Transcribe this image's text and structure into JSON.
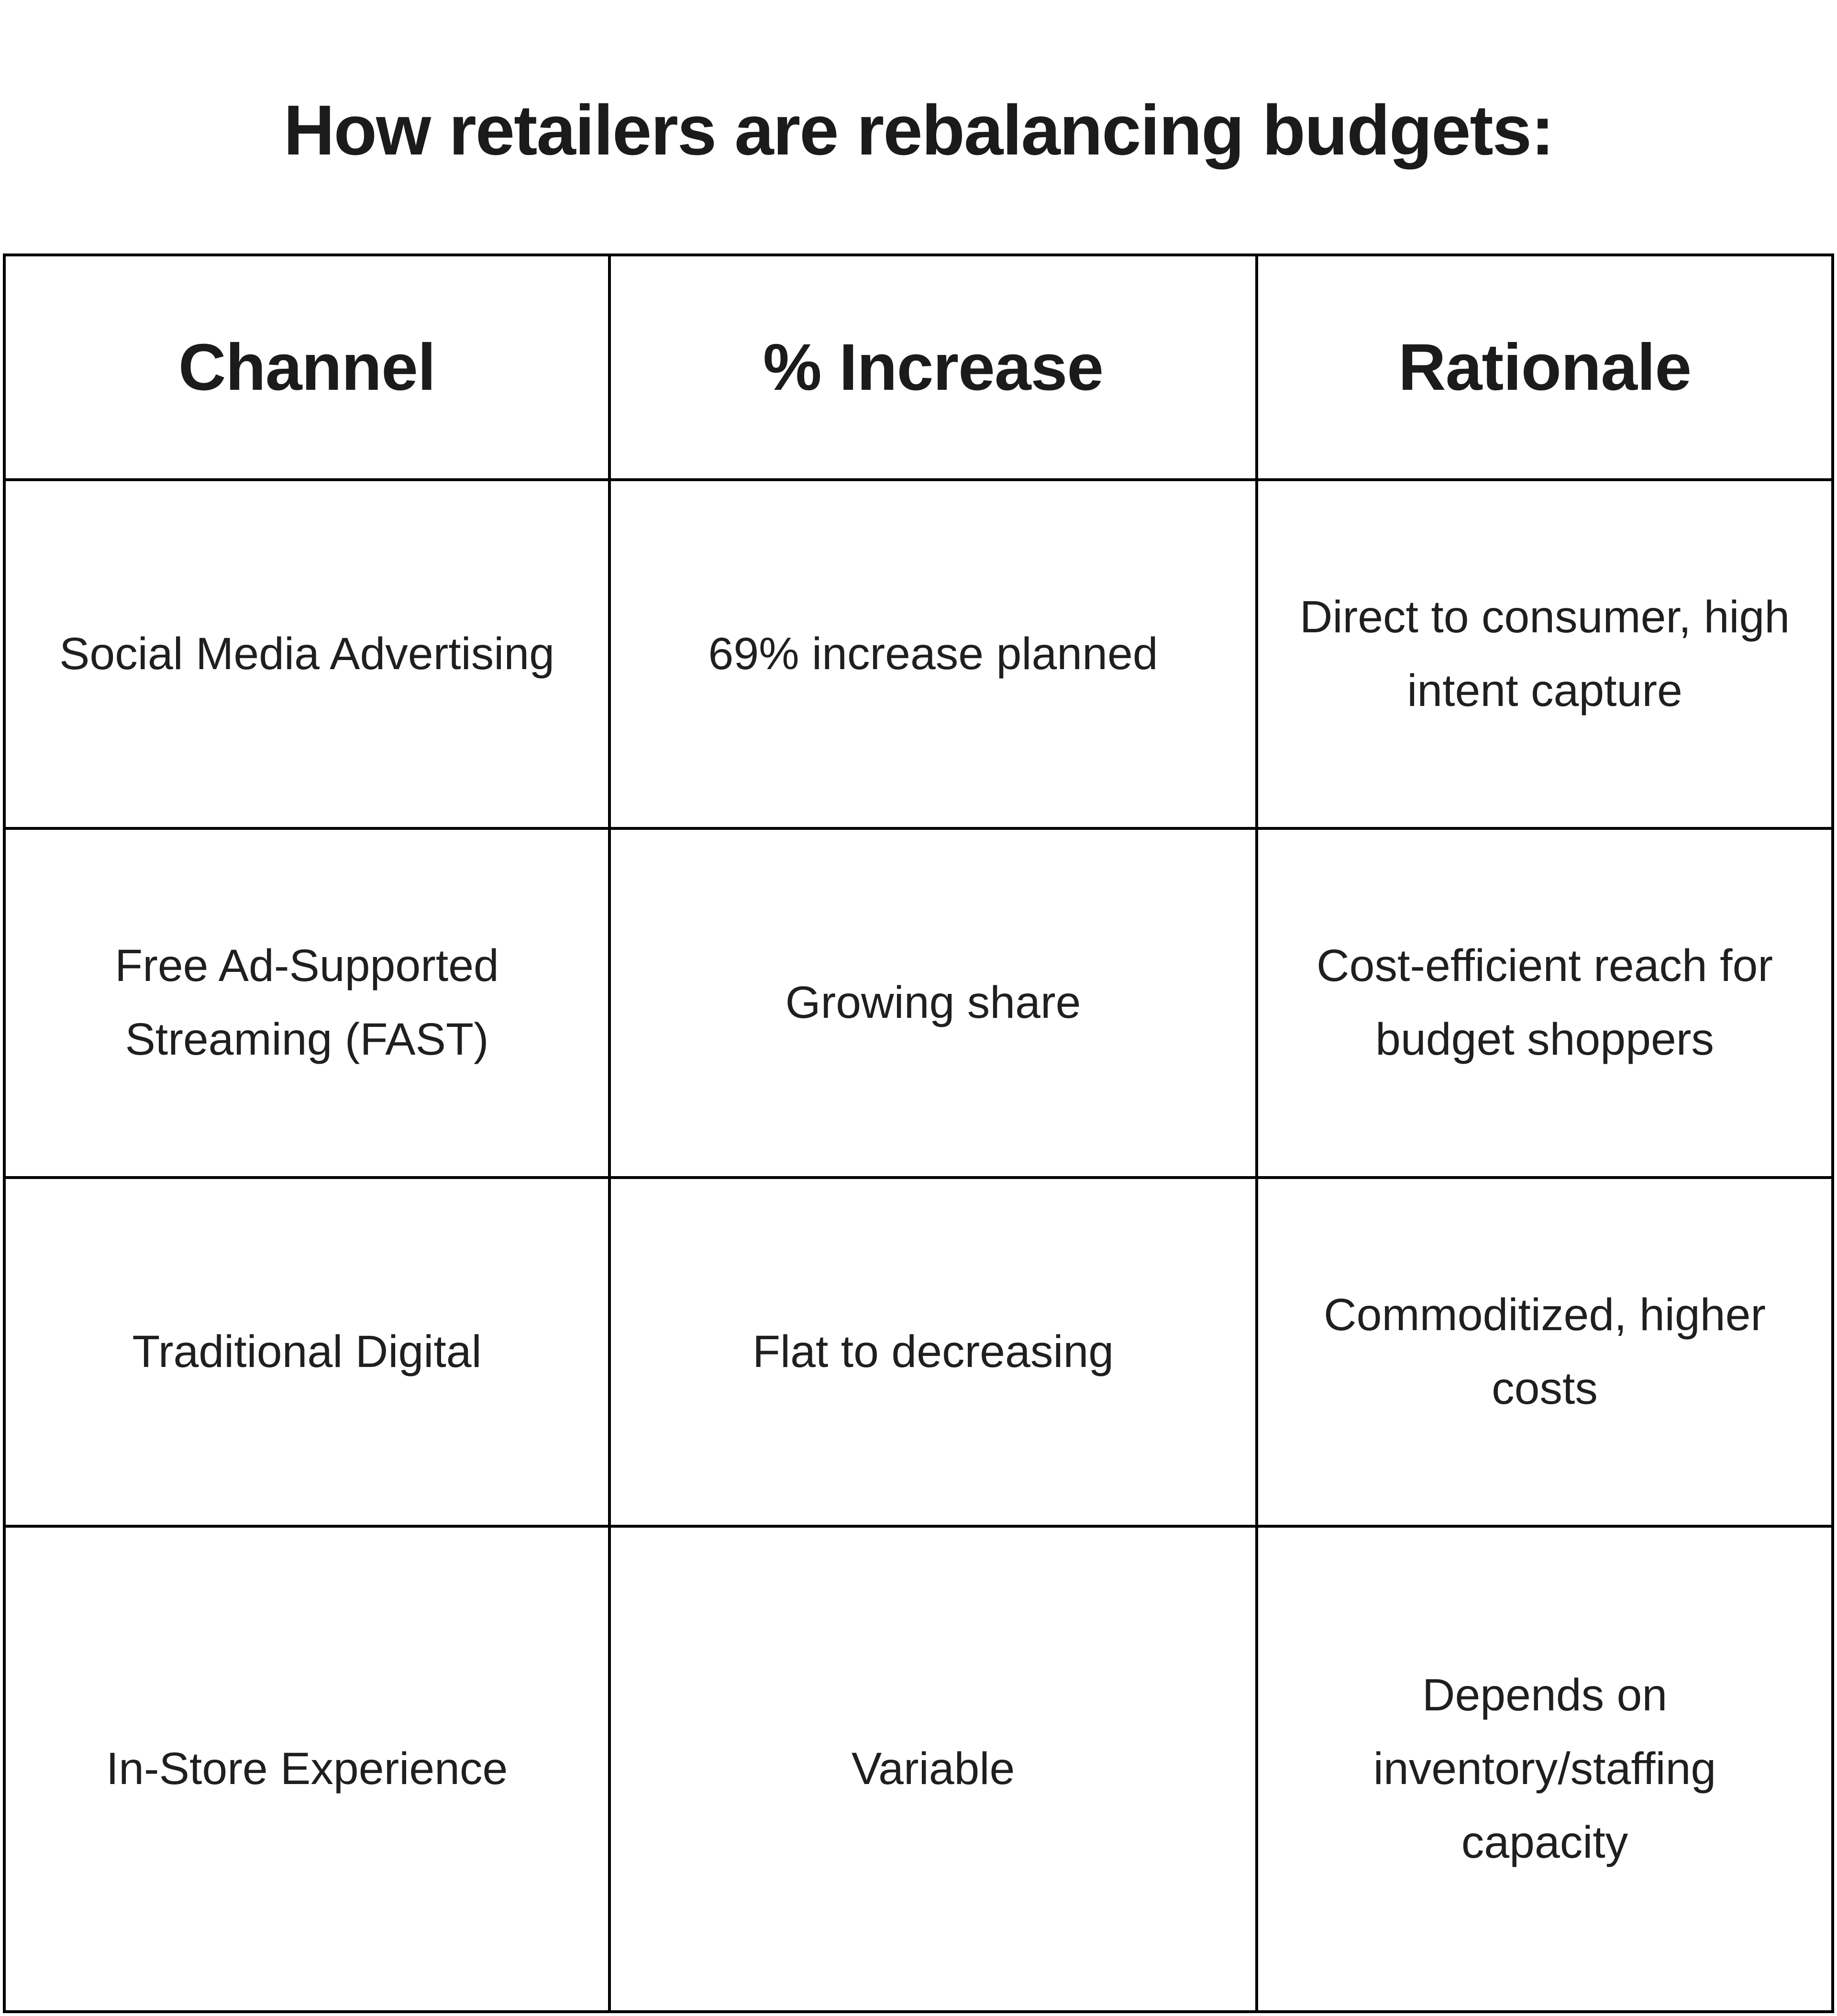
{
  "title": "How retailers are rebalancing budgets:",
  "chart_data": {
    "type": "table",
    "title": "How retailers are rebalancing budgets:",
    "columns": [
      "Channel",
      "% Increase",
      "Rationale"
    ],
    "rows": [
      [
        "Social Media Advertising",
        "69% increase planned",
        "Direct to consumer, high intent capture"
      ],
      [
        "Free Ad-Supported Streaming (FAST)",
        "Growing share",
        "Cost-efficient reach for budget shoppers"
      ],
      [
        "Traditional Digital",
        "Flat to decreasing",
        "Commoditized, higher costs"
      ],
      [
        "In-Store Experience",
        "Variable",
        "Depends on inventory/staffing capacity"
      ]
    ],
    "layout": {
      "grid": "on",
      "header_row": true,
      "text_align": "center"
    }
  },
  "colors": {
    "background": "#ffffff",
    "border": "#000000",
    "text": "#1a1a1a"
  }
}
